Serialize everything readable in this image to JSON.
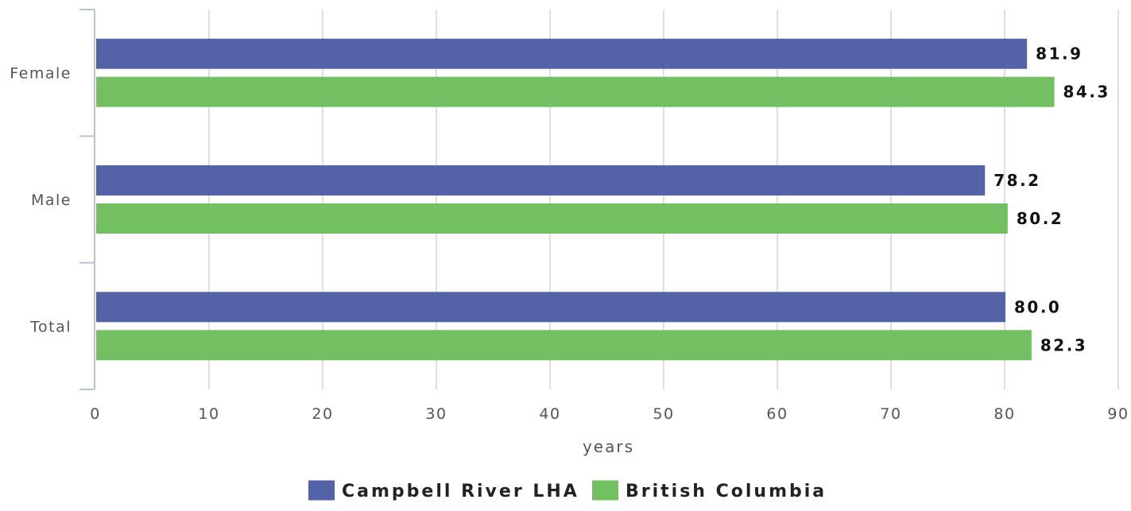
{
  "chart_data": {
    "type": "bar",
    "orientation": "horizontal",
    "categories": [
      "Female",
      "Male",
      "Total"
    ],
    "series": [
      {
        "name": "Campbell River LHA",
        "values": [
          81.9,
          78.2,
          80.0
        ],
        "labels": [
          "81.9",
          "78.2",
          "80.0"
        ],
        "color": "#5462a7"
      },
      {
        "name": "British Columbia",
        "values": [
          84.3,
          80.2,
          82.3
        ],
        "labels": [
          "84.3",
          "80.2",
          "82.3"
        ],
        "color": "#72c062"
      }
    ],
    "xlabel": "years",
    "xlim": [
      0,
      90
    ],
    "x_ticks": [
      "0",
      "10",
      "20",
      "30",
      "40",
      "50",
      "60",
      "70",
      "80",
      "90"
    ],
    "grid": true,
    "legend_position": "bottom-center"
  }
}
